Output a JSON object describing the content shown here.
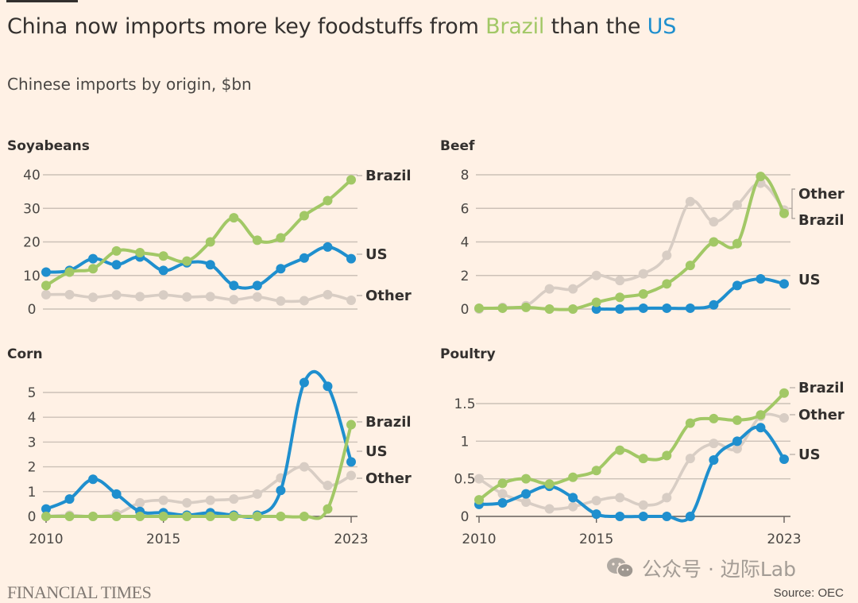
{
  "header": {
    "title_prefix": "China now imports more key foodstuffs from ",
    "title_brazil": "Brazil",
    "title_middle": " than the ",
    "title_us": "US",
    "subtitle": "Chinese imports by origin, $bn"
  },
  "footer": {
    "brand": "FINANCIAL TIMES",
    "source": "Source: OEC",
    "watermark": "公众号 · 边际Lab"
  },
  "colors": {
    "Brazil": "#A2C866",
    "US": "#1F8FCE",
    "Other": "#D8CDC4",
    "grid": "#CCC1B7",
    "axis": "#66605C"
  },
  "chart_data": [
    {
      "type": "line",
      "title": "Soyabeans",
      "xlabel": "",
      "ylabel": "$bn",
      "x": [
        2010,
        2011,
        2012,
        2013,
        2014,
        2015,
        2016,
        2017,
        2018,
        2019,
        2020,
        2021,
        2022,
        2023
      ],
      "xticks": [],
      "yticks": [
        0,
        10,
        20,
        30,
        40
      ],
      "ytick_labels": [
        "0",
        "10",
        "20",
        "30",
        "40"
      ],
      "ylim": [
        0,
        40
      ],
      "grid": true,
      "series": [
        {
          "name": "Other",
          "values": [
            4.3,
            4.3,
            3.5,
            4.2,
            3.7,
            4.2,
            3.6,
            3.7,
            2.8,
            3.6,
            2.4,
            2.5,
            4.3,
            2.6
          ]
        },
        {
          "name": "US",
          "values": [
            11,
            11.5,
            15,
            13.2,
            15.5,
            11.5,
            13.8,
            13.2,
            7,
            7,
            12,
            15.2,
            18.5,
            15
          ]
        },
        {
          "name": "Brazil",
          "values": [
            7,
            11,
            12,
            17.3,
            16.8,
            15.8,
            14.3,
            20,
            27.2,
            20.5,
            21.2,
            27.8,
            32.3,
            38.5
          ]
        }
      ],
      "labels": [
        {
          "name": "Brazil",
          "text": "Brazil"
        },
        {
          "name": "US",
          "text": "US"
        },
        {
          "name": "Other",
          "text": "Other"
        }
      ]
    },
    {
      "type": "line",
      "title": "Beef",
      "xlabel": "",
      "ylabel": "$bn",
      "x": [
        2010,
        2011,
        2012,
        2013,
        2014,
        2015,
        2016,
        2017,
        2018,
        2019,
        2020,
        2021,
        2022,
        2023
      ],
      "xticks": [],
      "yticks": [
        0,
        2,
        4,
        6,
        8
      ],
      "ytick_labels": [
        "0",
        "2",
        "4",
        "6",
        "8"
      ],
      "ylim": [
        0,
        8
      ],
      "grid": true,
      "series": [
        {
          "name": "Other",
          "values": [
            0,
            0.1,
            0.2,
            1.2,
            1.2,
            2.0,
            1.7,
            2.1,
            3.2,
            6.4,
            5.2,
            6.2,
            7.5,
            5.9
          ]
        },
        {
          "name": "US",
          "values": [
            null,
            null,
            null,
            null,
            null,
            0,
            0,
            0.05,
            0.05,
            0.05,
            0.25,
            1.4,
            1.8,
            1.5
          ]
        },
        {
          "name": "Brazil",
          "values": [
            0.05,
            0.05,
            0.1,
            0,
            0,
            0.4,
            0.7,
            0.9,
            1.5,
            2.6,
            4.0,
            3.9,
            7.9,
            5.7
          ]
        }
      ],
      "labels": [
        {
          "name": "Other",
          "text": "Other"
        },
        {
          "name": "Brazil",
          "text": "Brazil"
        },
        {
          "name": "US",
          "text": "US"
        }
      ]
    },
    {
      "type": "line",
      "title": "Corn",
      "xlabel": "",
      "ylabel": "$bn",
      "x": [
        2010,
        2011,
        2012,
        2013,
        2014,
        2015,
        2016,
        2017,
        2018,
        2019,
        2020,
        2021,
        2022,
        2023
      ],
      "xticks": [
        2010,
        2015,
        2023
      ],
      "xtick_labels": [
        "2010",
        "2015",
        "2023"
      ],
      "yticks": [
        0,
        1,
        2,
        3,
        4,
        5
      ],
      "ytick_labels": [
        "0",
        "1",
        "2",
        "3",
        "4",
        "5"
      ],
      "ylim": [
        0,
        5
      ],
      "grid": true,
      "series": [
        {
          "name": "Other",
          "values": [
            0,
            0.05,
            0,
            0.1,
            0.55,
            0.65,
            0.55,
            0.65,
            0.7,
            0.9,
            1.55,
            2.0,
            1.25,
            1.65
          ]
        },
        {
          "name": "US",
          "values": [
            0.3,
            0.7,
            1.5,
            0.9,
            0.2,
            0.15,
            0.05,
            0.15,
            0.05,
            0.05,
            1.05,
            5.4,
            5.25,
            2.2
          ]
        },
        {
          "name": "Brazil",
          "values": [
            0,
            0,
            0,
            0,
            0,
            0,
            0,
            0,
            0,
            0,
            0,
            0,
            0.3,
            3.7
          ]
        }
      ],
      "labels": [
        {
          "name": "Brazil",
          "text": "Brazil"
        },
        {
          "name": "US",
          "text": "US"
        },
        {
          "name": "Other",
          "text": "Other"
        }
      ]
    },
    {
      "type": "line",
      "title": "Poultry",
      "xlabel": "",
      "ylabel": "$bn",
      "x": [
        2010,
        2011,
        2012,
        2013,
        2014,
        2015,
        2016,
        2017,
        2018,
        2019,
        2020,
        2021,
        2022,
        2023
      ],
      "xticks": [
        2010,
        2015,
        2023
      ],
      "xtick_labels": [
        "2010",
        "2015",
        "2023"
      ],
      "yticks": [
        0,
        0.5,
        1,
        1.5
      ],
      "ytick_labels": [
        "0",
        "0.5",
        "1",
        "1.5"
      ],
      "ylim": [
        0,
        1.5
      ],
      "grid": true,
      "series": [
        {
          "name": "Other",
          "values": [
            0.5,
            0.3,
            0.19,
            0.1,
            0.13,
            0.21,
            0.25,
            0.15,
            0.25,
            0.77,
            0.97,
            0.9,
            1.33,
            1.31
          ]
        },
        {
          "name": "US",
          "values": [
            0.16,
            0.18,
            0.3,
            0.4,
            0.25,
            0.03,
            0,
            0,
            0,
            0,
            0.75,
            1.0,
            1.18,
            0.76
          ]
        },
        {
          "name": "Brazil",
          "values": [
            0.22,
            0.44,
            0.5,
            0.43,
            0.52,
            0.61,
            0.88,
            0.77,
            0.81,
            1.24,
            1.3,
            1.28,
            1.35,
            1.64
          ]
        }
      ],
      "labels": [
        {
          "name": "Brazil",
          "text": "Brazil"
        },
        {
          "name": "Other",
          "text": "Other"
        },
        {
          "name": "US",
          "text": "US"
        }
      ]
    }
  ]
}
